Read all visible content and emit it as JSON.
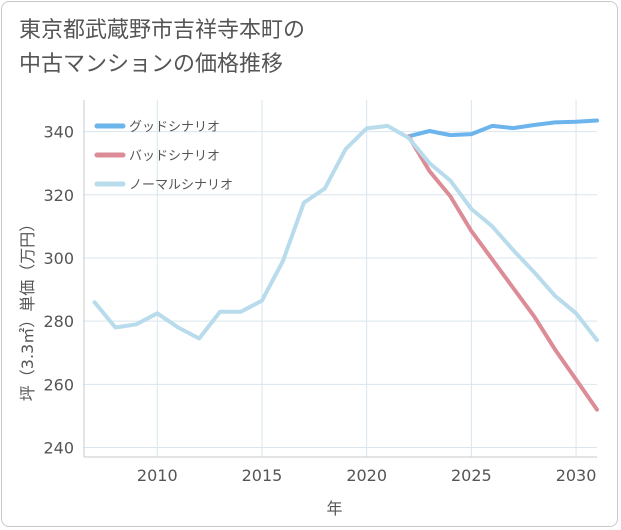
{
  "title_lines": [
    "東京都武蔵野市吉祥寺本町の",
    "中古マンションの価格推移"
  ],
  "chart_data": {
    "type": "line",
    "title": "東京都武蔵野市吉祥寺本町の中古マンションの価格推移",
    "xlabel": "年",
    "ylabel": "坪（3.3㎡）単価（万円）",
    "xlim": [
      2006.5,
      2031
    ],
    "ylim": [
      237,
      350
    ],
    "xticks": [
      2010,
      2015,
      2020,
      2025,
      2030
    ],
    "yticks": [
      240,
      260,
      280,
      300,
      320,
      340
    ],
    "grid": true,
    "legend_position": "top-left",
    "series": [
      {
        "name": "グッドシナリオ",
        "color": "#6cb4ec",
        "x": [
          2022,
          2023,
          2024,
          2025,
          2026,
          2027,
          2028,
          2029,
          2030,
          2031
        ],
        "values": [
          338.5,
          340.2,
          338.9,
          339.2,
          341.8,
          341.1,
          342.1,
          342.9,
          343.1,
          343.5
        ]
      },
      {
        "name": "バッドシナリオ",
        "color": "#dc8c96",
        "x": [
          2022,
          2023,
          2024,
          2025,
          2026,
          2027,
          2028,
          2029,
          2030,
          2031
        ],
        "values": [
          338.5,
          327.5,
          319.5,
          308.5,
          299.5,
          290.5,
          281.5,
          271.0,
          261.5,
          252.0
        ]
      },
      {
        "name": "ノーマルシナリオ",
        "color": "#b8dcec",
        "x": [
          2007,
          2008,
          2009,
          2010,
          2011,
          2012,
          2013,
          2014,
          2015,
          2016,
          2017,
          2018,
          2019,
          2020,
          2021,
          2022,
          2023,
          2024,
          2025,
          2026,
          2027,
          2028,
          2029,
          2030,
          2031
        ],
        "values": [
          286.0,
          278.0,
          279.0,
          282.5,
          278.0,
          274.5,
          283.0,
          283.0,
          286.5,
          299.0,
          317.5,
          322.0,
          334.5,
          341.0,
          341.8,
          338.0,
          330.0,
          324.5,
          315.5,
          310.0,
          302.5,
          295.5,
          288.0,
          282.5,
          274.0
        ]
      }
    ]
  }
}
